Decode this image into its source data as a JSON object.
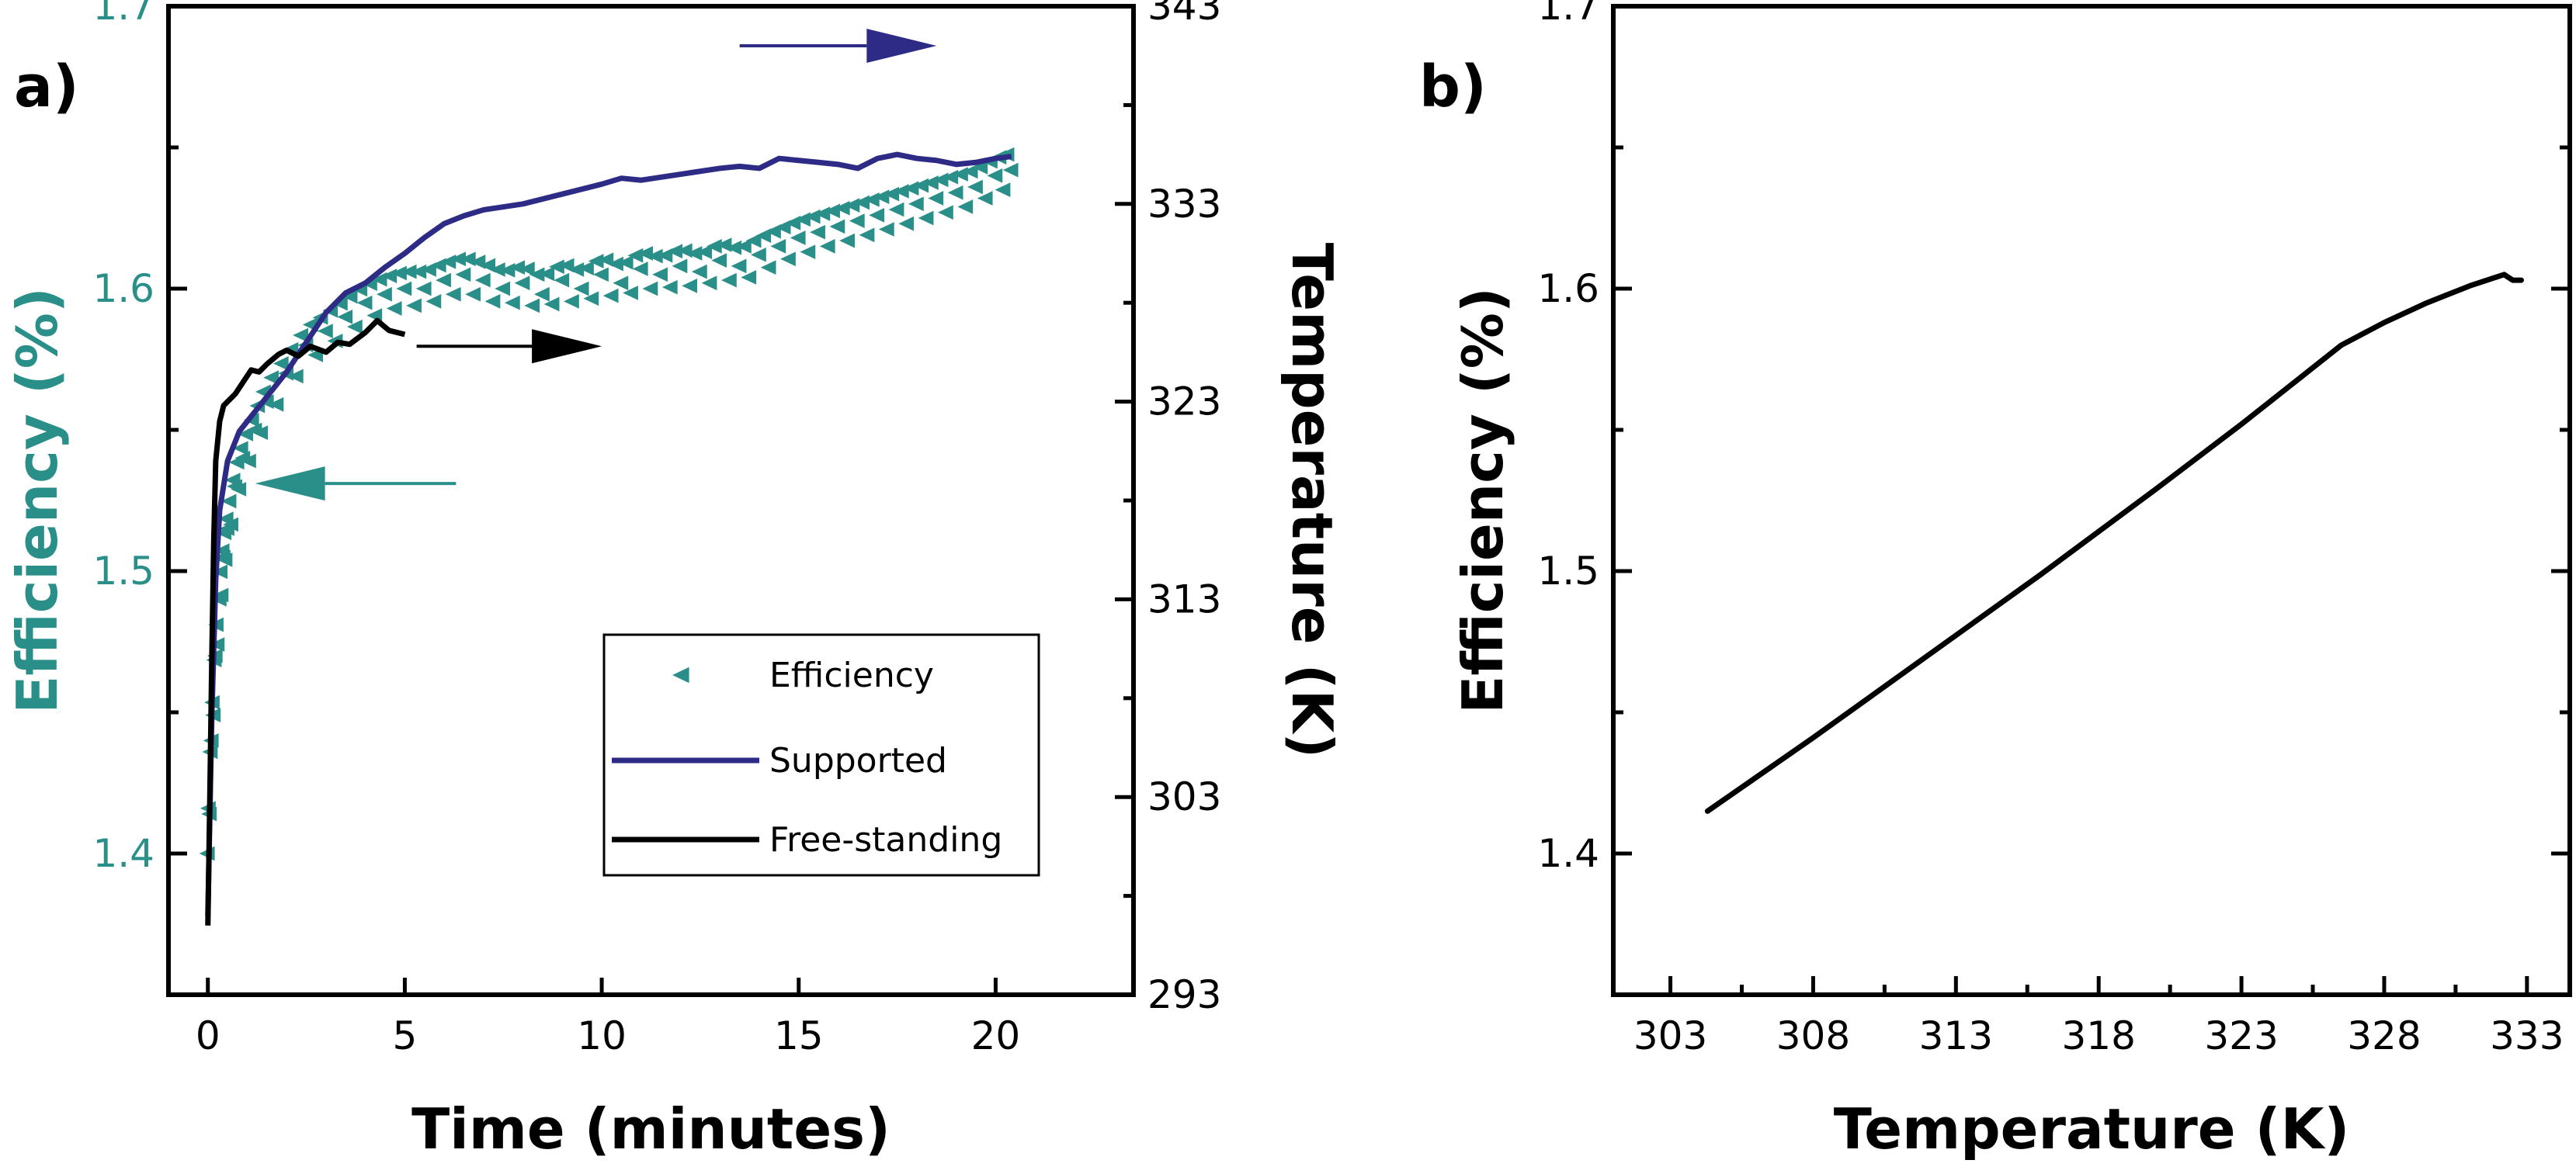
{
  "colors": {
    "efficiency": "#2a8f89",
    "supported": "#2e2b86",
    "free_standing": "#000000",
    "axis": "#000000"
  },
  "chart_data": [
    {
      "panel_label": "a)",
      "type": "line",
      "xlabel": "Time (minutes)",
      "ylabel_left": "Efficiency (%)",
      "ylabel_right": "Temperature (K)",
      "xlim": [
        -1,
        23.5
      ],
      "ylim_left": [
        1.35,
        1.7
      ],
      "ylim_right": [
        293,
        343
      ],
      "xticks": [
        "0",
        "5",
        "10",
        "15",
        "20"
      ],
      "yticks_left": [
        "1.4",
        "1.5",
        "1.6",
        "1.7"
      ],
      "yticks_right": [
        "293",
        "303",
        "313",
        "323",
        "333",
        "343"
      ],
      "legend": {
        "placement": "lower-right",
        "entries": [
          "Efficiency",
          "Supported",
          "Free-standing"
        ]
      },
      "series": [
        {
          "name": "Efficiency",
          "axis": "left",
          "marker": "triangle-left",
          "x": [
            0.0,
            0.1,
            0.2,
            0.3,
            0.4,
            0.5,
            0.7,
            0.9,
            1.2,
            1.5,
            2.0,
            2.5,
            3.0,
            3.5,
            4.0,
            4.5,
            5.0,
            5.5,
            6.0,
            6.5,
            7.0,
            7.5,
            8.0,
            8.5,
            9.0,
            9.5,
            10.0,
            10.5,
            11.0,
            11.5,
            12.0,
            12.5,
            13.0,
            13.5,
            14.0,
            14.5,
            15.0,
            15.5,
            16.0,
            16.5,
            17.0,
            17.5,
            18.0,
            18.5,
            19.0,
            19.5,
            20.0,
            20.4
          ],
          "y": [
            1.4,
            1.44,
            1.47,
            1.49,
            1.505,
            1.515,
            1.53,
            1.54,
            1.55,
            1.56,
            1.57,
            1.58,
            1.585,
            1.59,
            1.595,
            1.598,
            1.6,
            1.6,
            1.603,
            1.605,
            1.603,
            1.6,
            1.602,
            1.598,
            1.603,
            1.6,
            1.605,
            1.602,
            1.607,
            1.605,
            1.608,
            1.606,
            1.61,
            1.608,
            1.612,
            1.615,
            1.618,
            1.62,
            1.622,
            1.624,
            1.626,
            1.628,
            1.63,
            1.632,
            1.634,
            1.636,
            1.64,
            1.642
          ]
        },
        {
          "name": "Supported",
          "axis": "right",
          "x": [
            0.0,
            0.1,
            0.2,
            0.3,
            0.5,
            0.8,
            1.2,
            1.6,
            2.0,
            2.5,
            3.0,
            3.5,
            4.0,
            4.5,
            5.0,
            5.5,
            6.0,
            6.5,
            7.0,
            8.0,
            9.0,
            10.0,
            10.5,
            11.0,
            12.0,
            13.0,
            13.5,
            14.0,
            14.5,
            15.0,
            15.5,
            16.0,
            16.5,
            17.0,
            17.5,
            18.0,
            18.5,
            19.0,
            19.5,
            20.0,
            20.4
          ],
          "y": [
            297.0,
            307.0,
            314.0,
            317.5,
            320.0,
            321.5,
            322.5,
            323.5,
            324.5,
            326.0,
            327.5,
            328.5,
            329.0,
            329.8,
            330.5,
            331.3,
            332.0,
            332.4,
            332.7,
            333.0,
            333.5,
            334.0,
            334.3,
            334.2,
            334.5,
            334.8,
            334.9,
            334.8,
            335.3,
            335.2,
            335.1,
            335.0,
            334.8,
            335.3,
            335.5,
            335.3,
            335.2,
            335.0,
            335.1,
            335.3,
            335.4
          ]
        },
        {
          "name": "Free-standing",
          "axis": "right",
          "x": [
            0.0,
            0.05,
            0.1,
            0.15,
            0.2,
            0.3,
            0.4,
            0.5,
            0.7,
            0.9,
            1.1,
            1.3,
            1.5,
            1.8,
            2.0,
            2.3,
            2.6,
            3.0,
            3.3,
            3.6,
            4.0,
            4.3,
            4.6,
            5.0
          ],
          "y": [
            296.5,
            303.0,
            310.0,
            316.0,
            320.0,
            322.0,
            322.8,
            323.0,
            323.4,
            324.0,
            324.6,
            324.5,
            324.9,
            325.4,
            325.6,
            325.3,
            325.8,
            325.5,
            326.0,
            325.9,
            326.5,
            327.1,
            326.6,
            326.4
          ]
        }
      ],
      "annotations": [
        {
          "arrow": "right",
          "series": "Supported",
          "from": [
            13.5,
            341
          ],
          "to": [
            18.5,
            341
          ]
        },
        {
          "arrow": "right",
          "series": "Free-standing",
          "from": [
            5.3,
            325.8
          ],
          "to": [
            10.0,
            325.8
          ]
        },
        {
          "arrow": "left",
          "series": "Efficiency",
          "from": [
            6.3,
            1.531
          ],
          "to": [
            1.2,
            1.531
          ]
        }
      ]
    },
    {
      "panel_label": "b)",
      "type": "line",
      "xlabel": "Temperature (K)",
      "ylabel": "Efficiency (%)",
      "xlim": [
        301,
        334.5
      ],
      "ylim": [
        1.35,
        1.7
      ],
      "xticks": [
        "303",
        "308",
        "313",
        "318",
        "323",
        "328",
        "333"
      ],
      "yticks": [
        "1.4",
        "1.5",
        "1.6",
        "1.7"
      ],
      "series": [
        {
          "name": "",
          "x": [
            304.3,
            308,
            312,
            316,
            320,
            323,
            325,
            326.5,
            328,
            329.5,
            331,
            332.2,
            332.5,
            332.8
          ],
          "y": [
            1.415,
            1.441,
            1.47,
            1.499,
            1.529,
            1.552,
            1.568,
            1.58,
            1.588,
            1.595,
            1.601,
            1.605,
            1.603,
            1.603
          ]
        }
      ]
    }
  ]
}
